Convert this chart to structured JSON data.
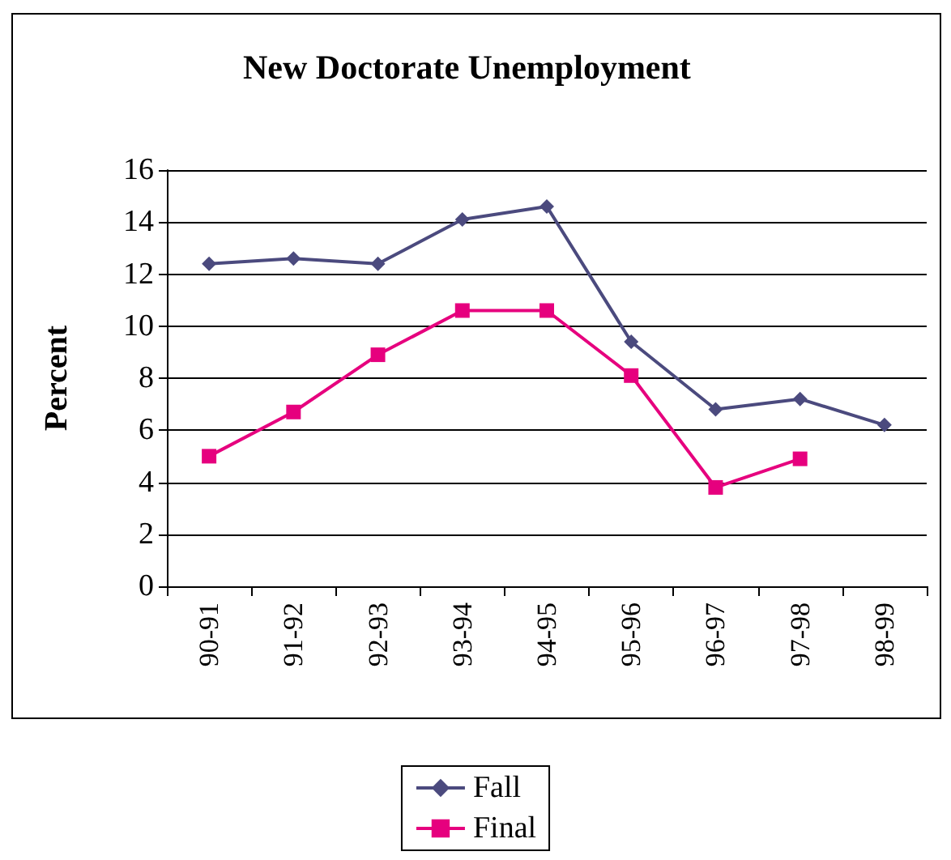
{
  "chart_data": {
    "type": "line",
    "title": "New Doctorate Unemployment",
    "ylabel": "Percent",
    "categories": [
      "90-91",
      "91-92",
      "92-93",
      "93-94",
      "94-95",
      "95-96",
      "96-97",
      "97-98",
      "98-99"
    ],
    "series": [
      {
        "name": "Fall",
        "color": "#4b4a7e",
        "marker": "diamond",
        "values": [
          12.4,
          12.6,
          12.4,
          14.1,
          14.6,
          9.4,
          6.8,
          7.2,
          6.2
        ]
      },
      {
        "name": "Final",
        "color": "#e6007e",
        "marker": "square",
        "values": [
          5.0,
          6.7,
          8.9,
          10.6,
          10.6,
          8.1,
          3.8,
          4.9,
          null
        ]
      }
    ],
    "ylim": [
      0,
      16
    ],
    "yticks": [
      0,
      2,
      4,
      6,
      8,
      10,
      12,
      14,
      16
    ],
    "grid": "y",
    "legend": "bottom",
    "line_style": "solid"
  }
}
